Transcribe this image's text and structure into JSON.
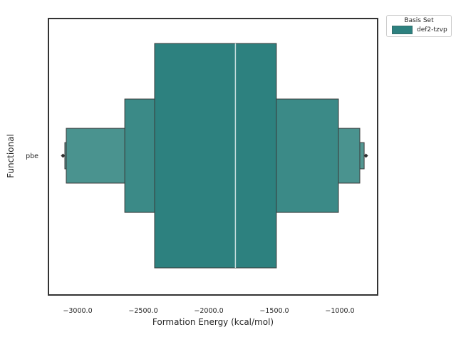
{
  "figure": {
    "background": "#ffffff",
    "text_color": "#262626",
    "spine_color": "#333333"
  },
  "axes": {
    "ylabel": "Functional",
    "xlabel": "Formation Energy (kcal/mol)",
    "ytick": "pbe",
    "xticks": [
      "−3000.0",
      "−2500.0",
      "−2000.0",
      "−1500.0",
      "−1000.0"
    ]
  },
  "legend": {
    "title": "Basis Set",
    "entries": [
      {
        "label": "def2-tzvp",
        "color": "#2d817f"
      }
    ]
  },
  "chart_data": {
    "type": "boxen",
    "orientation": "horizontal",
    "title": "",
    "xlabel": "Formation Energy (kcal/mol)",
    "ylabel": "Functional",
    "categories": [
      "pbe"
    ],
    "hue": "def2-tzvp",
    "xlim": [
      -3223,
      -712
    ],
    "xticks": [
      -3000,
      -2500,
      -2000,
      -1500,
      -1000
    ],
    "grid": false,
    "legend_position": "upper right (outside axes)",
    "median": -1797,
    "levels": [
      {
        "lo": -3098,
        "hi": -815,
        "height_frac": 0.117,
        "color": "#549792"
      },
      {
        "lo": -3087,
        "hi": -848,
        "height_frac": 0.244,
        "color": "#4a938f"
      },
      {
        "lo": -2641,
        "hi": -1011,
        "height_frac": 0.505,
        "color": "#3b8a87"
      },
      {
        "lo": -2413,
        "hi": -1484,
        "height_frac": 1.0,
        "color": "#2d817f"
      }
    ],
    "outliers": [
      -3112,
      -801
    ],
    "outlier_color": "#2f2f2f",
    "median_line_color": "#c6dedd",
    "edge_color": "#3a3a3a"
  }
}
